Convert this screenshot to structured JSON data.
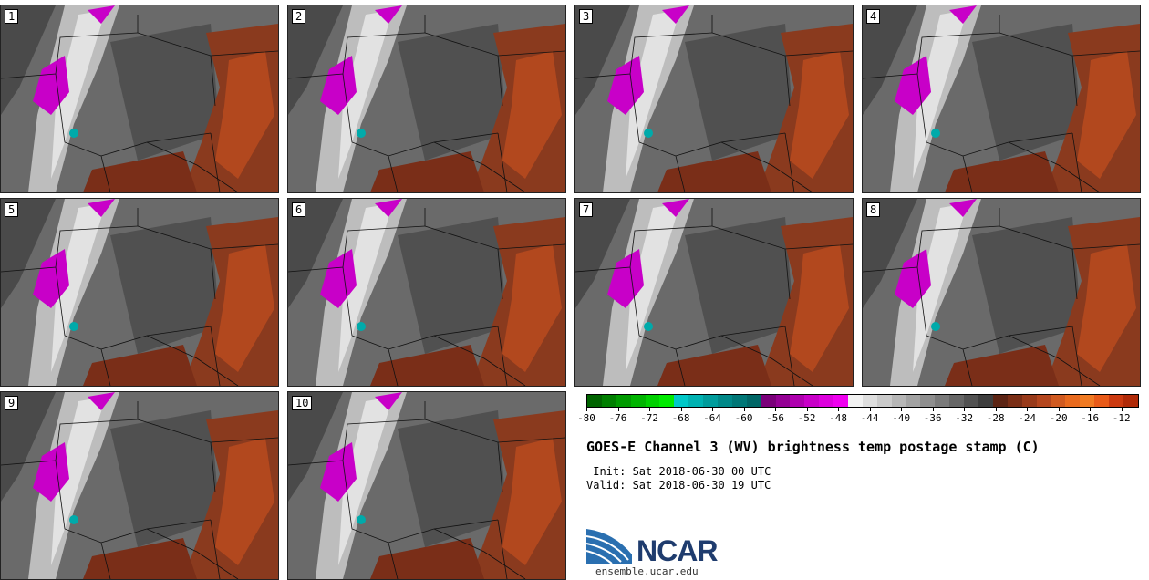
{
  "panels": [
    {
      "label": "1"
    },
    {
      "label": "2"
    },
    {
      "label": "3"
    },
    {
      "label": "4"
    },
    {
      "label": "5"
    },
    {
      "label": "6"
    },
    {
      "label": "7"
    },
    {
      "label": "8"
    },
    {
      "label": "9"
    },
    {
      "label": "10"
    }
  ],
  "colorbar": {
    "ticks": [
      "-80",
      "-76",
      "-72",
      "-68",
      "-64",
      "-60",
      "-56",
      "-52",
      "-48",
      "-44",
      "-40",
      "-36",
      "-32",
      "-28",
      "-24",
      "-20",
      "-16",
      "-12"
    ],
    "min": -80,
    "max": -10,
    "colors": [
      "#006400",
      "#007f00",
      "#009a00",
      "#00b400",
      "#00d000",
      "#00ea00",
      "#00c8c8",
      "#00b2b2",
      "#009c9c",
      "#008888",
      "#007777",
      "#006666",
      "#7a007a",
      "#940094",
      "#ae00ae",
      "#c800c8",
      "#dd00dd",
      "#f000f0",
      "#f2f2f2",
      "#dedede",
      "#cacaca",
      "#b6b6b6",
      "#a2a2a2",
      "#8e8e8e",
      "#7a7a7a",
      "#666666",
      "#525252",
      "#3e3e3e",
      "#5c2414",
      "#7a2e16",
      "#983a1a",
      "#b4461e",
      "#d05a20",
      "#e86a1e",
      "#f07a22",
      "#e85a18",
      "#cc3a10",
      "#b02a08"
    ]
  },
  "title": "GOES-E Channel 3 (WV) brightness temp postage stamp (C)",
  "init": " Init: Sat 2018-06-30 00 UTC",
  "valid": "Valid: Sat 2018-06-30 19 UTC",
  "logo": {
    "text": "NCAR",
    "url": "ensemble.ucar.edu"
  }
}
